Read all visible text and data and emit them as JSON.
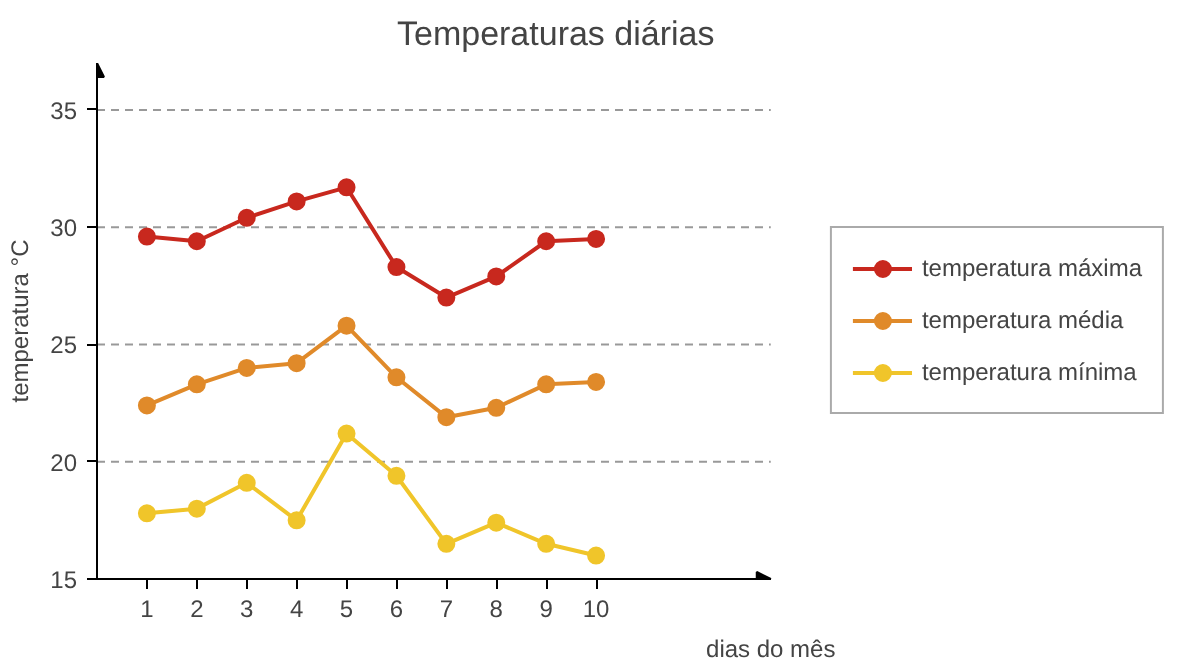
{
  "chart_data": {
    "type": "line",
    "title": "Temperaturas diárias",
    "xlabel": "dias do mês",
    "ylabel": "temperatura °C",
    "x": [
      1,
      2,
      3,
      4,
      5,
      6,
      7,
      8,
      9,
      10
    ],
    "series": [
      {
        "name": "temperatura máxima",
        "color": "#c8281e",
        "values": [
          29.6,
          29.4,
          30.4,
          31.1,
          31.7,
          28.3,
          27.0,
          27.9,
          29.4,
          29.5
        ]
      },
      {
        "name": "temperatura média",
        "color": "#e08a2a",
        "values": [
          22.4,
          23.3,
          24.0,
          24.2,
          25.8,
          23.6,
          21.9,
          22.3,
          23.3,
          23.4
        ]
      },
      {
        "name": "temperatura mínima",
        "color": "#f0c52a",
        "values": [
          17.8,
          18.0,
          19.1,
          17.5,
          21.2,
          19.4,
          16.5,
          17.4,
          16.5,
          16.0
        ]
      }
    ],
    "xlim": [
      0,
      13.5
    ],
    "ylim": [
      15,
      37
    ],
    "xticks": [
      1,
      2,
      3,
      4,
      5,
      6,
      7,
      8,
      9,
      10
    ],
    "yticks": [
      15,
      20,
      25,
      30,
      35
    ],
    "grid": "y",
    "legend": "right",
    "marker": "circle",
    "line_style": "solid"
  }
}
